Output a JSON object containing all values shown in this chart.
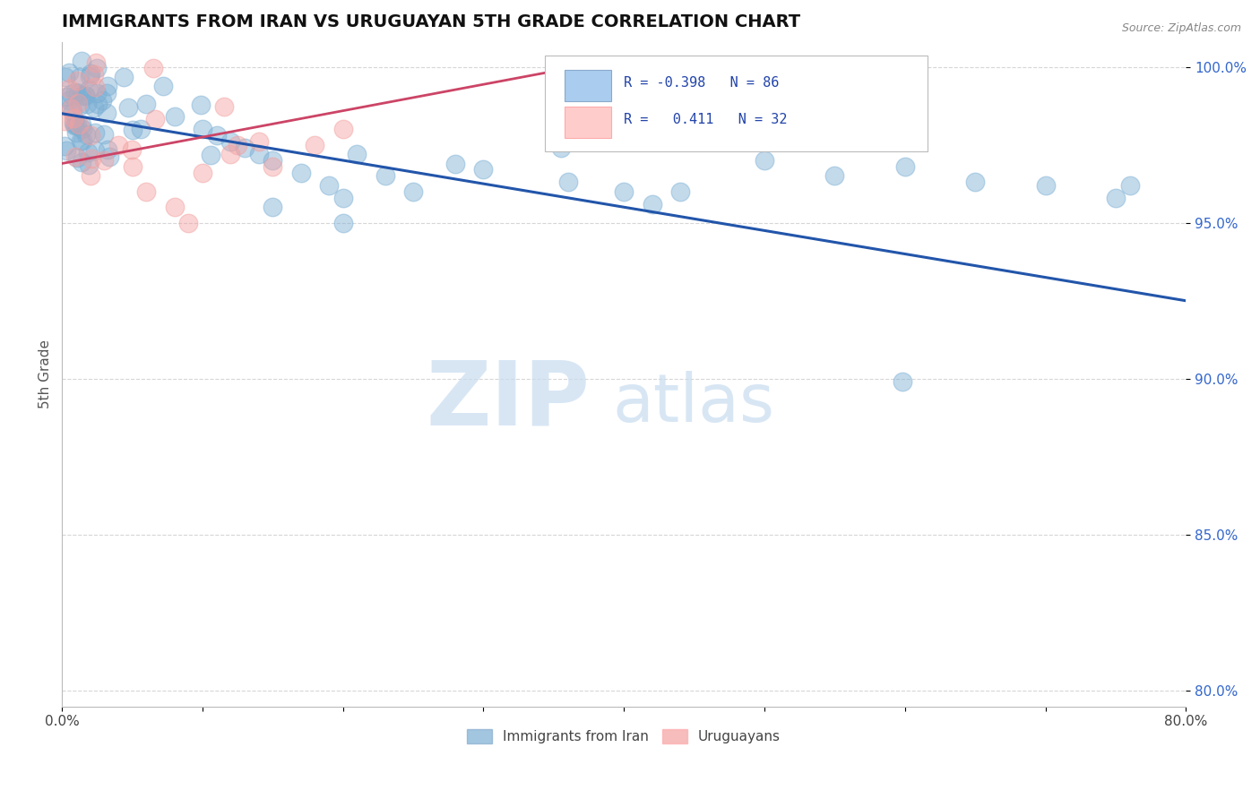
{
  "title": "IMMIGRANTS FROM IRAN VS URUGUAYAN 5TH GRADE CORRELATION CHART",
  "source": "Source: ZipAtlas.com",
  "ylabel": "5th Grade",
  "legend_label1": "Immigrants from Iran",
  "legend_label2": "Uruguayans",
  "R1": -0.398,
  "N1": 86,
  "R2": 0.411,
  "N2": 32,
  "xlim": [
    0.0,
    0.8
  ],
  "ylim": [
    0.795,
    1.008
  ],
  "xticks": [
    0.0,
    0.1,
    0.2,
    0.3,
    0.4,
    0.5,
    0.6,
    0.7,
    0.8
  ],
  "yticks": [
    0.8,
    0.85,
    0.9,
    0.95,
    1.0
  ],
  "color_blue": "#7BAFD4",
  "color_pink": "#F4A0A0",
  "trend_blue": "#2255AA",
  "trend_pink": "#CC4466",
  "watermark_zip": "ZIP",
  "watermark_atlas": "atlas",
  "blue_trend_x0": 0.0,
  "blue_trend_x1": 0.8,
  "blue_trend_y0": 0.985,
  "blue_trend_y1": 0.925,
  "pink_trend_x0": 0.0,
  "pink_trend_x1": 0.355,
  "pink_trend_y0": 0.969,
  "pink_trend_y1": 0.999
}
